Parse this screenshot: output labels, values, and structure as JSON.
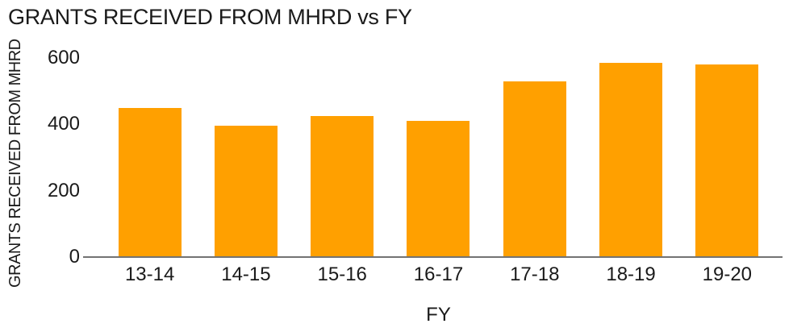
{
  "chart_data": {
    "type": "bar",
    "title": "GRANTS RECEIVED FROM MHRD vs FY",
    "xlabel": "FY",
    "ylabel": "GRANTS RECEIVED FROM MHRD",
    "categories": [
      "13-14",
      "14-15",
      "15-16",
      "16-17",
      "17-18",
      "18-19",
      "19-20"
    ],
    "values": [
      450,
      395,
      425,
      410,
      530,
      585,
      580
    ],
    "y_ticks": [
      0,
      200,
      400,
      600
    ],
    "ylim": [
      0,
      600
    ],
    "grid": false,
    "legend": false,
    "colors": {
      "bar": "#FFA000",
      "axis_line": "#737373",
      "text": "#1a1a1a",
      "background": "#ffffff"
    }
  }
}
